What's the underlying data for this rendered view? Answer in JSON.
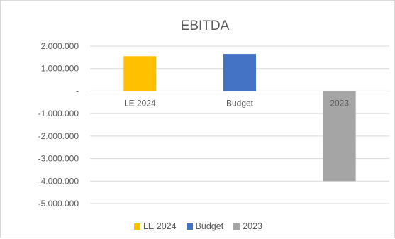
{
  "chart_data": {
    "type": "bar",
    "title": "EBITDA",
    "categories": [
      "LE 2024",
      "Budget",
      "2023"
    ],
    "values": [
      1550000,
      1650000,
      -4000000
    ],
    "colors": [
      "#FFC000",
      "#4472C4",
      "#A5A5A5"
    ],
    "ylim": [
      -5000000,
      2000000
    ],
    "y_ticks": [
      2000000,
      1000000,
      0,
      -1000000,
      -2000000,
      -3000000,
      -4000000,
      -5000000
    ],
    "y_tick_labels": [
      "2.000.000",
      "1.000.000",
      "-",
      "-1.000.000",
      "-2.000.000",
      "-3.000.000",
      "-4.000.000",
      "-5.000.000"
    ],
    "grid": true,
    "legend": "bottom",
    "legend_entries": [
      "LE 2024",
      "Budget",
      "2023"
    ],
    "xlabel": "",
    "ylabel": ""
  }
}
